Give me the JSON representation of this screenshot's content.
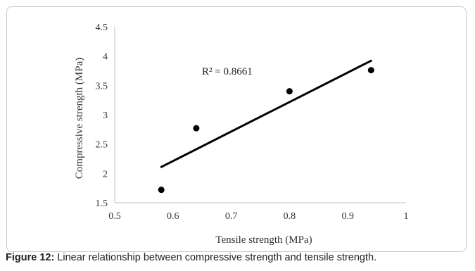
{
  "chart_data": {
    "type": "scatter",
    "title": "",
    "xlabel": "Tensile strength (MPa)",
    "ylabel": "Compressive strength (MPa)",
    "xlim": [
      0.5,
      1
    ],
    "ylim": [
      1.5,
      4.5
    ],
    "xticks": [
      "0.5",
      "0.6",
      "0.7",
      "0.8",
      "0.9",
      "1"
    ],
    "yticks": [
      "1.5",
      "2",
      "2.5",
      "3",
      "3.5",
      "4",
      "4.5"
    ],
    "grid": false,
    "points": [
      {
        "x": 0.58,
        "y": 1.72
      },
      {
        "x": 0.64,
        "y": 2.77
      },
      {
        "x": 0.8,
        "y": 3.4
      },
      {
        "x": 0.94,
        "y": 3.76
      }
    ],
    "trendline": {
      "type": "linear",
      "x": [
        0.58,
        0.94
      ],
      "y": [
        2.11,
        3.92
      ]
    },
    "annotation": "R² = 0.8661",
    "marker_color": "#000000"
  },
  "caption": {
    "label": "Figure 12:",
    "text": " Linear relationship between compressive strength and tensile strength."
  }
}
